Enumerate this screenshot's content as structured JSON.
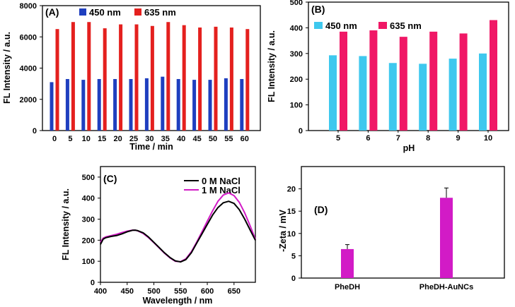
{
  "figure_title": "",
  "colors": {
    "blue": "#1f3fbf",
    "red": "#e4201e",
    "cyan": "#3ec8ee",
    "pink": "#f01866",
    "black": "#000000",
    "magenta": "#d21bc6"
  },
  "chart_data": [
    {
      "id": "A",
      "panel_label": "(A)",
      "type": "bar",
      "xlabel": "Time / min",
      "ylabel": "FL Intensity / a.u.",
      "ylim": [
        0,
        8000
      ],
      "yticks": [
        "0",
        "2000",
        "4000",
        "6000",
        "8000"
      ],
      "categories": [
        "0",
        "5",
        "10",
        "15",
        "20",
        "25",
        "30",
        "35",
        "40",
        "45",
        "50",
        "55",
        "60"
      ],
      "series": [
        {
          "name": "450 nm",
          "color": "#1f3fbf",
          "values": [
            3100,
            3300,
            3250,
            3300,
            3300,
            3300,
            3350,
            3450,
            3300,
            3250,
            3250,
            3350,
            3300
          ]
        },
        {
          "name": "635 nm",
          "color": "#e4201e",
          "values": [
            6500,
            6950,
            6950,
            6550,
            6800,
            6800,
            6700,
            6950,
            6750,
            6600,
            6650,
            6600,
            6500
          ]
        }
      ],
      "legend_position": "top"
    },
    {
      "id": "B",
      "panel_label": "(B)",
      "type": "bar",
      "xlabel": "pH",
      "ylabel": "FL Intensity / a.u.",
      "ylim": [
        0,
        500
      ],
      "yticks": [
        "0",
        "100",
        "200",
        "300",
        "400",
        "500"
      ],
      "categories": [
        "5",
        "6",
        "7",
        "8",
        "9",
        "10"
      ],
      "series": [
        {
          "name": "450 nm",
          "color": "#3ec8ee",
          "values": [
            293,
            290,
            263,
            260,
            280,
            300
          ]
        },
        {
          "name": "635 nm",
          "color": "#f01866",
          "values": [
            385,
            390,
            365,
            385,
            378,
            430
          ]
        }
      ],
      "legend_position": "top"
    },
    {
      "id": "C",
      "panel_label": "(C)",
      "type": "line",
      "xlabel": "Wavelength / nm",
      "ylabel": "FL Intensity / a.u.",
      "xlim": [
        400,
        690
      ],
      "ylim": [
        0,
        550
      ],
      "xticks": [
        "400",
        "450",
        "500",
        "550",
        "600",
        "650"
      ],
      "yticks": [
        "0",
        "100",
        "200",
        "300",
        "400",
        "500"
      ],
      "series": [
        {
          "name": "0 M NaCl",
          "color": "#000000",
          "x": [
            400,
            405,
            410,
            420,
            430,
            440,
            450,
            460,
            465,
            470,
            480,
            490,
            500,
            510,
            520,
            530,
            540,
            550,
            560,
            570,
            580,
            590,
            600,
            610,
            620,
            630,
            640,
            650,
            660,
            670,
            680,
            690
          ],
          "y": [
            180,
            205,
            212,
            218,
            222,
            230,
            240,
            247,
            248,
            245,
            235,
            215,
            190,
            165,
            140,
            118,
            102,
            97,
            108,
            140,
            185,
            230,
            275,
            320,
            355,
            378,
            385,
            375,
            345,
            300,
            250,
            200
          ]
        },
        {
          "name": "1 M NaCl",
          "color": "#d21bc6",
          "x": [
            400,
            405,
            410,
            420,
            430,
            440,
            450,
            460,
            465,
            470,
            480,
            490,
            500,
            510,
            520,
            530,
            540,
            550,
            560,
            570,
            580,
            590,
            600,
            610,
            620,
            630,
            640,
            650,
            660,
            670,
            680,
            690
          ],
          "y": [
            190,
            210,
            216,
            222,
            228,
            236,
            243,
            248,
            248,
            244,
            232,
            212,
            188,
            163,
            138,
            116,
            100,
            98,
            112,
            145,
            190,
            240,
            290,
            340,
            385,
            415,
            425,
            412,
            380,
            330,
            270,
            205
          ]
        }
      ],
      "legend_position": "top-right"
    },
    {
      "id": "D",
      "panel_label": "(D)",
      "type": "bar",
      "xlabel": "",
      "ylabel": "-Zeta / mV",
      "ylim": [
        0,
        25
      ],
      "yticks": [
        "0",
        "5",
        "10",
        "15",
        "20"
      ],
      "categories": [
        "PheDH",
        "PheDH-AuNCs"
      ],
      "series": [
        {
          "name": "-Zeta",
          "color": "#d21bc6",
          "values": [
            6.5,
            18
          ],
          "errors": [
            1.0,
            2.2
          ]
        }
      ]
    }
  ]
}
